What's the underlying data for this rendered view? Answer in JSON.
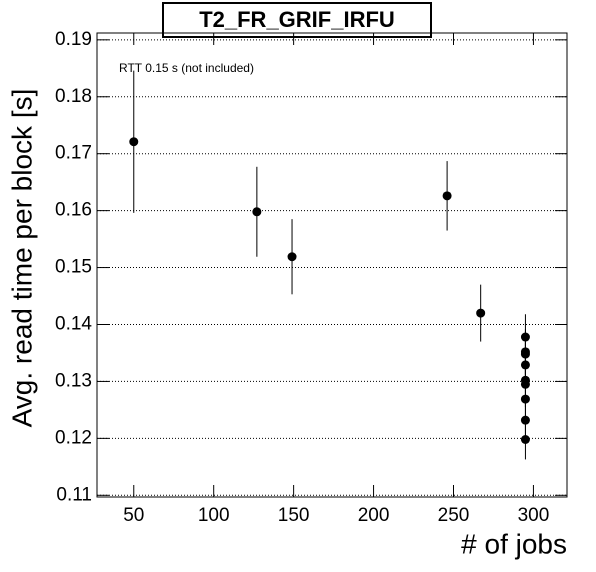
{
  "chart_data": {
    "type": "scatter",
    "title": "T2_FR_GRIF_IRFU",
    "annotation": "RTT 0.15 s (not included)",
    "x_label": "# of jobs",
    "y_label": "Avg. read time per block [s]",
    "x": [
      50,
      127,
      149,
      246,
      267,
      295,
      295,
      295,
      295,
      295,
      295,
      295,
      295,
      295
    ],
    "values": [
      0.1721,
      0.1598,
      0.1519,
      0.1626,
      0.142,
      0.1378,
      0.1352,
      0.1348,
      0.1329,
      0.1302,
      0.1295,
      0.1269,
      0.1232,
      0.1198
    ],
    "errors": [
      0.0125,
      0.0079,
      0.0066,
      0.0061,
      0.005,
      0.004,
      0.004,
      0.004,
      0.004,
      0.004,
      0.004,
      0.004,
      0.004,
      0.0035
    ],
    "color": "#000000",
    "xlim": [
      27,
      321
    ],
    "ylim": [
      0.1097,
      0.1912
    ],
    "xticks": [
      50,
      100,
      150,
      200,
      250,
      300
    ],
    "yticks": [
      0.11,
      0.12,
      0.13,
      0.14,
      0.15,
      0.16,
      0.17,
      0.18,
      0.19
    ],
    "grid": true
  }
}
